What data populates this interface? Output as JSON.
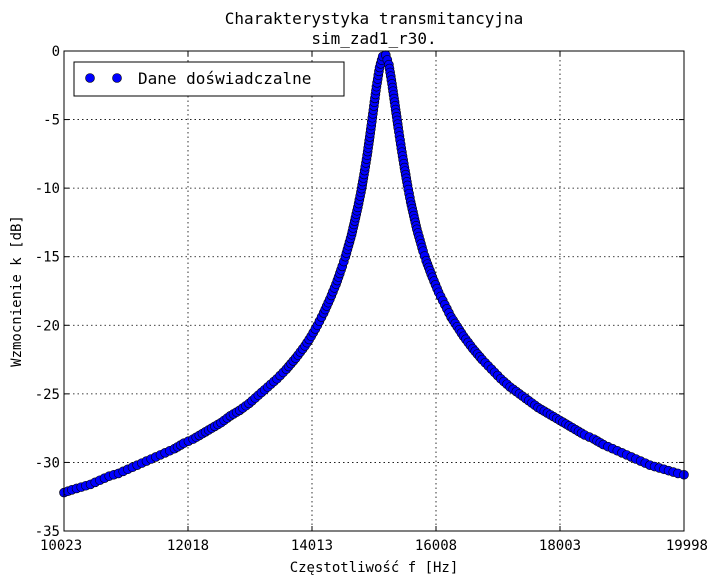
{
  "chart_data": {
    "type": "scatter",
    "title": "Charakterystyka transmitancyjna",
    "subtitle": "sim_zad1_r30.",
    "xlabel": "Częstotliwość f [Hz]",
    "ylabel": "Wzmocnienie k [dB]",
    "xlim": [
      10023,
      19998
    ],
    "ylim": [
      -35,
      0
    ],
    "xticks": [
      10023,
      12018,
      14013,
      16008,
      18003,
      19998
    ],
    "yticks": [
      0,
      -5,
      -10,
      -15,
      -20,
      -25,
      -30,
      -35
    ],
    "grid": true,
    "legend_position": "top-left",
    "marker_color": "#0000ff",
    "series": [
      {
        "name": "Dane doświadczalne",
        "points": [
          [
            10023,
            -32.2
          ],
          [
            10150,
            -32.0
          ],
          [
            10300,
            -31.8
          ],
          [
            10450,
            -31.6
          ],
          [
            10600,
            -31.3
          ],
          [
            10750,
            -31.0
          ],
          [
            10900,
            -30.8
          ],
          [
            11050,
            -30.5
          ],
          [
            11200,
            -30.2
          ],
          [
            11350,
            -29.9
          ],
          [
            11500,
            -29.6
          ],
          [
            11650,
            -29.3
          ],
          [
            11800,
            -29.0
          ],
          [
            11950,
            -28.6
          ],
          [
            12100,
            -28.3
          ],
          [
            12250,
            -27.9
          ],
          [
            12400,
            -27.5
          ],
          [
            12550,
            -27.1
          ],
          [
            12700,
            -26.6
          ],
          [
            12850,
            -26.2
          ],
          [
            13000,
            -25.7
          ],
          [
            13150,
            -25.1
          ],
          [
            13300,
            -24.5
          ],
          [
            13450,
            -23.9
          ],
          [
            13600,
            -23.2
          ],
          [
            13750,
            -22.4
          ],
          [
            13900,
            -21.5
          ],
          [
            14000,
            -20.8
          ],
          [
            14100,
            -20.0
          ],
          [
            14200,
            -19.1
          ],
          [
            14300,
            -18.1
          ],
          [
            14400,
            -17.0
          ],
          [
            14500,
            -15.7
          ],
          [
            14550,
            -15.0
          ],
          [
            14600,
            -14.2
          ],
          [
            14650,
            -13.4
          ],
          [
            14700,
            -12.4
          ],
          [
            14750,
            -11.4
          ],
          [
            14800,
            -10.3
          ],
          [
            14850,
            -9.0
          ],
          [
            14900,
            -7.6
          ],
          [
            14950,
            -6.0
          ],
          [
            15000,
            -4.3
          ],
          [
            15050,
            -2.6
          ],
          [
            15100,
            -1.2
          ],
          [
            15150,
            -0.4
          ],
          [
            15200,
            -0.3
          ],
          [
            15250,
            -1.0
          ],
          [
            15300,
            -2.4
          ],
          [
            15350,
            -4.0
          ],
          [
            15400,
            -5.6
          ],
          [
            15450,
            -7.1
          ],
          [
            15500,
            -8.5
          ],
          [
            15550,
            -9.8
          ],
          [
            15600,
            -11.0
          ],
          [
            15650,
            -12.0
          ],
          [
            15700,
            -13.0
          ],
          [
            15750,
            -13.8
          ],
          [
            15800,
            -14.6
          ],
          [
            15850,
            -15.3
          ],
          [
            15950,
            -16.5
          ],
          [
            16050,
            -17.6
          ],
          [
            16150,
            -18.5
          ],
          [
            16250,
            -19.4
          ],
          [
            16350,
            -20.1
          ],
          [
            16450,
            -20.8
          ],
          [
            16600,
            -21.7
          ],
          [
            16750,
            -22.5
          ],
          [
            16900,
            -23.2
          ],
          [
            17050,
            -23.9
          ],
          [
            17200,
            -24.5
          ],
          [
            17350,
            -25.0
          ],
          [
            17500,
            -25.5
          ],
          [
            17650,
            -26.0
          ],
          [
            17800,
            -26.4
          ],
          [
            17950,
            -26.8
          ],
          [
            18100,
            -27.2
          ],
          [
            18250,
            -27.6
          ],
          [
            18400,
            -28.0
          ],
          [
            18550,
            -28.3
          ],
          [
            18700,
            -28.7
          ],
          [
            18850,
            -29.0
          ],
          [
            19000,
            -29.3
          ],
          [
            19150,
            -29.6
          ],
          [
            19300,
            -29.9
          ],
          [
            19450,
            -30.2
          ],
          [
            19600,
            -30.4
          ],
          [
            19750,
            -30.6
          ],
          [
            19900,
            -30.8
          ],
          [
            19998,
            -30.9
          ]
        ]
      }
    ]
  }
}
